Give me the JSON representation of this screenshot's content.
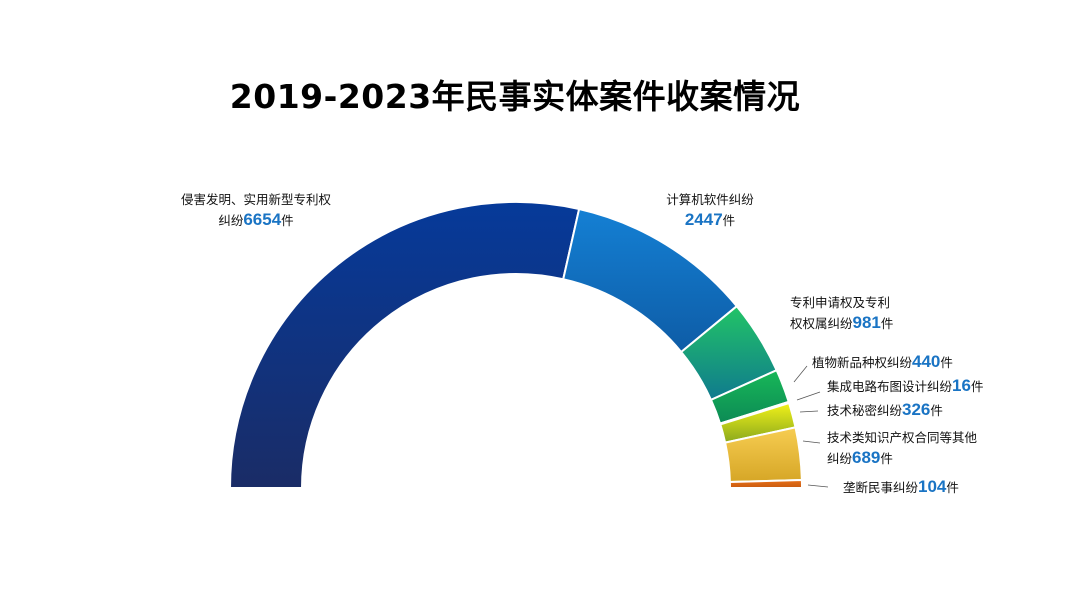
{
  "title": "2019-2023年民事实体案件收案情况",
  "chart_data": {
    "type": "pie",
    "subtype": "semicircle-donut",
    "unit": "件",
    "slices": [
      {
        "name": "侵害发明、实用新型专利权纠纷",
        "line1": "侵害发明、实用新型专利权",
        "line2": "纠纷",
        "value": 6654,
        "color_top": "#063a9a",
        "color_bottom": "#1a2c66"
      },
      {
        "name": "计算机软件纠纷",
        "line1": "计算机软件纠纷",
        "line2": "",
        "value": 2447,
        "color_top": "#1480d4",
        "color_bottom": "#0e5ca6"
      },
      {
        "name": "专利申请权及专利权权属纠纷",
        "line1": "专利申请权及专利",
        "line2": "权权属纠纷",
        "value": 981,
        "color_top": "#22c466",
        "color_bottom": "#0f7a8e"
      },
      {
        "name": "植物新品种权纠纷",
        "line1": "",
        "line2": "植物新品种权纠纷",
        "value": 440,
        "color_top": "#18b858",
        "color_bottom": "#0c8a55"
      },
      {
        "name": "集成电路布图设计纠纷",
        "line1": "",
        "line2": "集成电路布图设计纠纷",
        "value": 16,
        "color_top": "#39c54c",
        "color_bottom": "#39c54c"
      },
      {
        "name": "技术秘密纠纷",
        "line1": "",
        "line2": "技术秘密纠纷",
        "value": 326,
        "color_top": "#f2f21a",
        "color_bottom": "#8aa81c"
      },
      {
        "name": "技术类知识产权合同等其他纠纷",
        "line1": "技术类知识产权合同等其他",
        "line2": "纠纷",
        "value": 689,
        "color_top": "#f7cd52",
        "color_bottom": "#d6a626"
      },
      {
        "name": "垄断民事纠纷",
        "line1": "",
        "line2": "垄断民事纠纷",
        "value": 104,
        "color_top": "#e87018",
        "color_bottom": "#c85a10"
      }
    ]
  }
}
